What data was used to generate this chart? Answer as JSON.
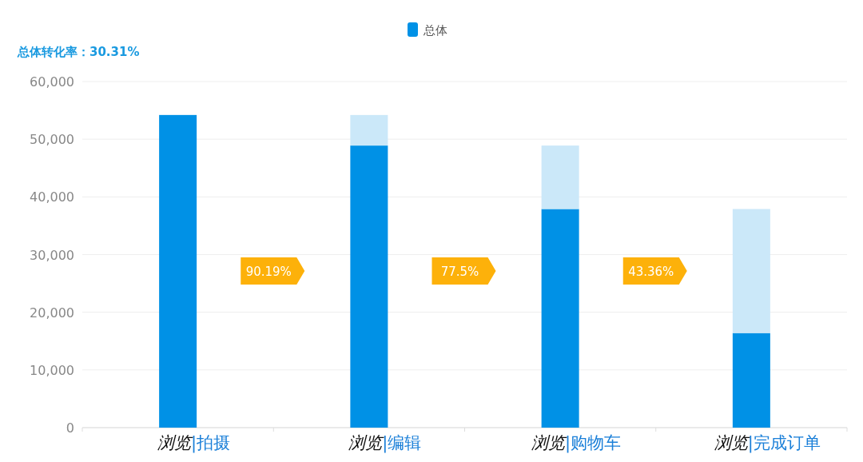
{
  "chart_data": {
    "type": "bar",
    "stacked": true,
    "categories": [
      "浏览|拍摄",
      "浏览|编辑",
      "浏览|购物车",
      "浏览|完成订单"
    ],
    "series": [
      {
        "name": "总体",
        "color": "#0091e6",
        "values": [
          54200,
          48900,
          37900,
          16400
        ]
      },
      {
        "color": "#cbe8f9",
        "values": [
          0,
          5300,
          11000,
          21500
        ]
      }
    ],
    "ylim": [
      0,
      60000
    ],
    "yticks": [
      {
        "value": 0,
        "label": "0"
      },
      {
        "value": 10000,
        "label": "10,000"
      },
      {
        "value": 20000,
        "label": "20,000"
      },
      {
        "value": 30000,
        "label": "30,000"
      },
      {
        "value": 40000,
        "label": "40,000"
      },
      {
        "value": 50000,
        "label": "50,000"
      },
      {
        "value": 60000,
        "label": "60,000"
      }
    ],
    "grid": "y",
    "legend": "top",
    "annotations": [
      "总体转化率：30.31%",
      "90.19%",
      "77.5%",
      "43.36%"
    ]
  }
}
